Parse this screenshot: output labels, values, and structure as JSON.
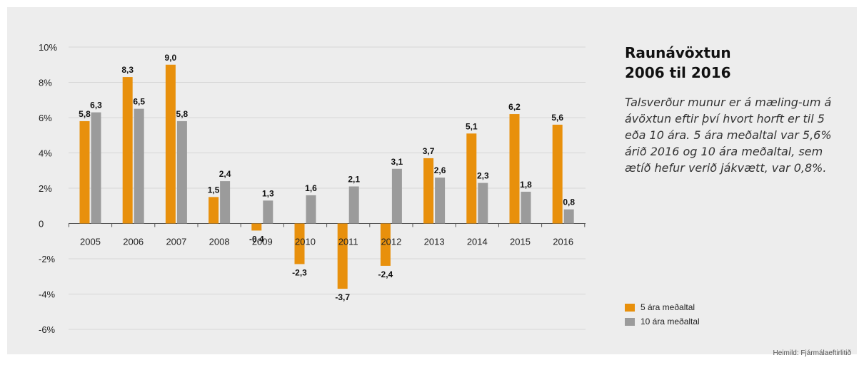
{
  "side": {
    "title_line1": "Raunávöxtun",
    "title_line2": "2006 til 2016",
    "description": "Talsverður munur er á mæling-um á ávöxtun eftir því hvort horft er til 5 eða 10 ára. 5 ára meðaltal var 5,6% árið 2016 og 10 ára meðaltal, sem ætíð hefur verið jákvætt, var 0,8%."
  },
  "source": "Heimild: Fjármálaeftirlitið",
  "colors": {
    "series1": "#e8900c",
    "series2": "#9b9b9b",
    "grid": "#d6d6d6",
    "axis": "#555555",
    "background": "#ededed"
  },
  "chart_data": {
    "type": "bar",
    "categories": [
      "2005",
      "2006",
      "2007",
      "2008",
      "2009",
      "2010",
      "2011",
      "2012",
      "2013",
      "2014",
      "2015",
      "2016"
    ],
    "series": [
      {
        "name": "5 ára meðaltal",
        "values": [
          5.8,
          8.3,
          9.0,
          1.5,
          -0.4,
          -2.3,
          -3.7,
          -2.4,
          3.7,
          5.1,
          6.2,
          5.6
        ],
        "labels": [
          "5,8",
          "8,3",
          "9,0",
          "1,5",
          "-0,4",
          "-2,3",
          "-3,7",
          "-2,4",
          "3,7",
          "5,1",
          "6,2",
          "5,6"
        ]
      },
      {
        "name": "10 ára meðaltal",
        "values": [
          6.3,
          6.5,
          5.8,
          2.4,
          1.3,
          1.6,
          2.1,
          3.1,
          2.6,
          2.3,
          1.8,
          0.8
        ],
        "labels": [
          "6,3",
          "6,5",
          "5,8",
          "2,4",
          "1,3",
          "1,6",
          "2,1",
          "3,1",
          "2,6",
          "2,3",
          "1,8",
          "0,8"
        ]
      }
    ],
    "y_ticks": [
      10,
      8,
      6,
      4,
      2,
      0,
      -2,
      -4,
      -6
    ],
    "y_tick_labels": [
      "10%",
      "8%",
      "6%",
      "4%",
      "2%",
      "0",
      "-2%",
      "-4%",
      "-6%"
    ],
    "ylim": [
      -6,
      10
    ],
    "grid": true,
    "legend_position": "bottom-right"
  }
}
